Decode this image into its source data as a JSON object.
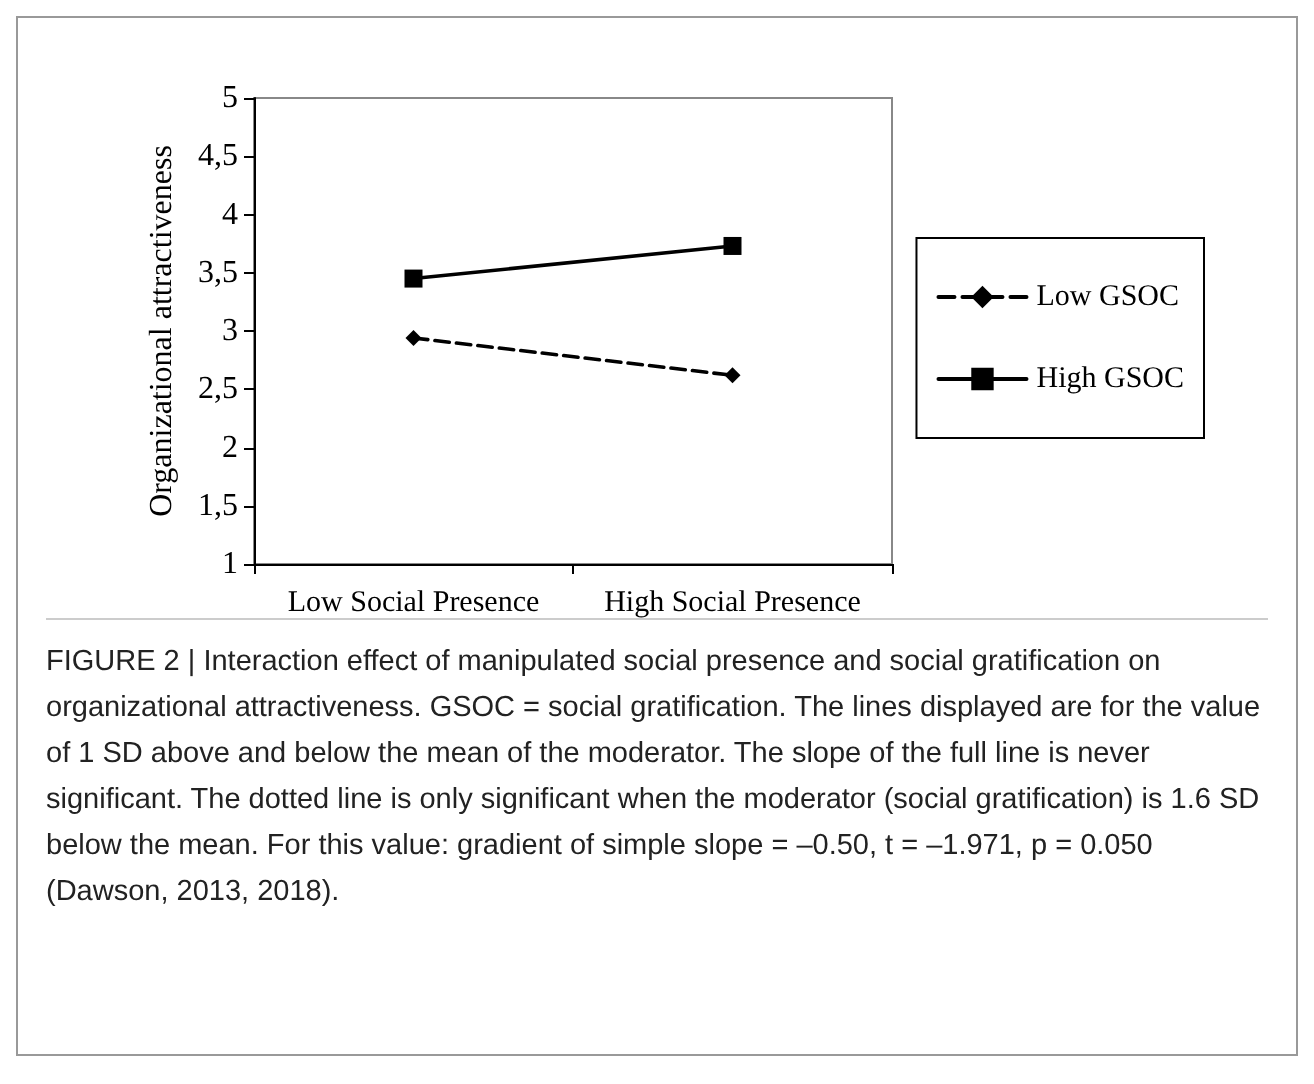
{
  "chart_data": {
    "type": "line",
    "ylabel": "Organizational attractiveness",
    "categories": [
      "Low Social Presence",
      "High Social Presence"
    ],
    "series": [
      {
        "name": "Low GSOC",
        "color": "#000000",
        "values": [
          2.94,
          2.62
        ],
        "line_style": "dashed",
        "marker": "diamond"
      },
      {
        "name": "High GSOC",
        "color": "#000000",
        "values": [
          3.45,
          3.73
        ],
        "line_style": "solid",
        "marker": "square"
      }
    ],
    "ylim": [
      1,
      5
    ],
    "yticks": [
      1,
      {
        "value": 1.5,
        "label": "1,5"
      },
      2,
      {
        "value": 2.5,
        "label": "2,5"
      },
      3,
      {
        "value": 3.5,
        "label": "3,5"
      },
      4,
      {
        "value": 4.5,
        "label": "4,5"
      },
      5
    ],
    "grid": false,
    "legend": "right",
    "annotations": [
      "FIGURE 2 | Interaction effect of manipulated social presence and social gratification on organizational attractiveness. GSOC = social gratification. The lines displayed are for the value of 1 SD above and below the mean of the moderator. The slope of the full line is never significant. The dotted line is only significant when the moderator (social gratification) is 1.6 SD below the mean. For this value: gradient of simple slope = –0.50, t = –1.971, p = 0.050 (Dawson, 2013, 2018)."
    ]
  }
}
